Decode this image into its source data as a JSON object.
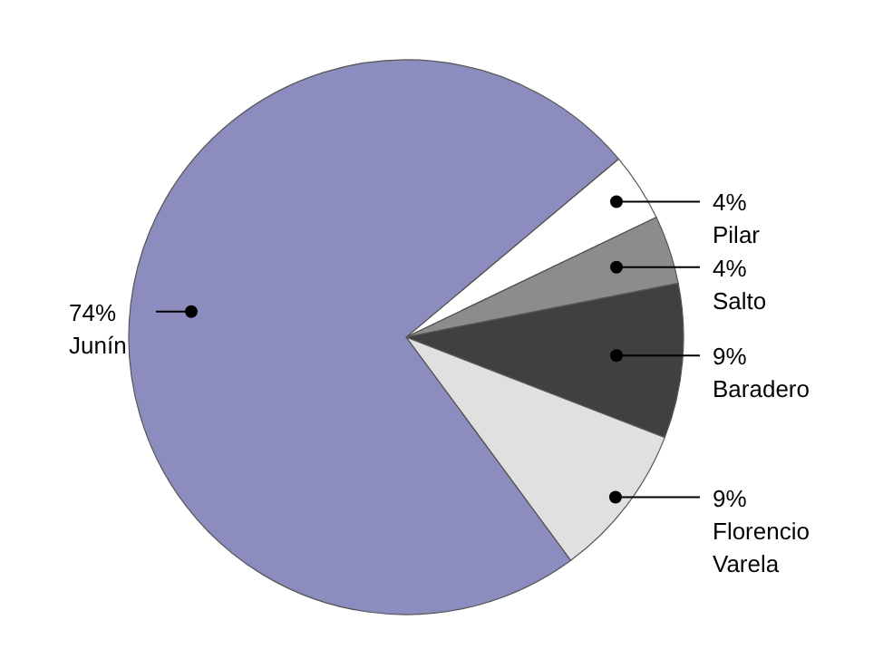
{
  "chart_data": {
    "type": "pie",
    "categories": [
      "Pilar",
      "Salto",
      "Baradero",
      "Florencio Varela",
      "Junín"
    ],
    "values": [
      4,
      4,
      9,
      9,
      74
    ],
    "value_labels": [
      "4%",
      "4%",
      "9%",
      "9%",
      "74%"
    ],
    "colors": [
      "#ffffff",
      "#8c8c8c",
      "#404040",
      "#e0e0e0",
      "#8c8cbe"
    ],
    "legend": false
  }
}
